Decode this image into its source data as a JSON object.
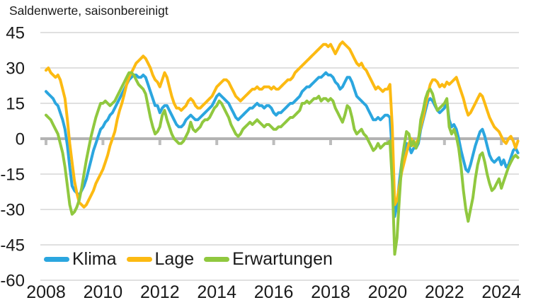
{
  "title": "Saldenwerte, saisonbereinigt",
  "legend": {
    "items": [
      {
        "label": "Klima",
        "color": "#2BA6DF"
      },
      {
        "label": "Lage",
        "color": "#FCBA12"
      },
      {
        "label": "Erwartungen",
        "color": "#90C83F"
      }
    ]
  },
  "axis_colors": {
    "gridline": "#cdcdcd",
    "zero_line": "#b3b3b3",
    "tick": "#bdbdbd",
    "text": "#1a1a1a"
  },
  "chart_data": {
    "type": "line",
    "title": "Saldenwerte, saisonbereinigt",
    "x_interval": "monthly",
    "x_start": "2008-01",
    "x_end": "2024-08",
    "xticks": [
      2008,
      2010,
      2012,
      2014,
      2016,
      2018,
      2020,
      2022,
      2024
    ],
    "yticks": [
      45,
      30,
      15,
      0,
      -15,
      -30,
      -45,
      -60
    ],
    "ylim": [
      -60,
      45
    ],
    "grid": "horizontal",
    "legend_position": "bottom-left-inside",
    "series": [
      {
        "name": "Klima",
        "color": "#2BA6DF",
        "values": [
          20,
          19,
          18,
          17,
          15,
          14,
          11,
          8,
          4,
          -3,
          -12,
          -20,
          -22,
          -23,
          -24,
          -22,
          -20,
          -17,
          -13,
          -9,
          -5,
          -2,
          1,
          4,
          5,
          7,
          8,
          10,
          11,
          13,
          15,
          17,
          19,
          21,
          23,
          25,
          26,
          27,
          27,
          26,
          26,
          27,
          26,
          23,
          20,
          17,
          14,
          14,
          11,
          13,
          14,
          14,
          12,
          10,
          8,
          6,
          5,
          5,
          6,
          8,
          9,
          10,
          9,
          8,
          8,
          9,
          10,
          11,
          12,
          13,
          14,
          16,
          18,
          19,
          18,
          17,
          16,
          15,
          13,
          11,
          9,
          8,
          9,
          10,
          11,
          12,
          13,
          13,
          14,
          15,
          14,
          14,
          13,
          14,
          14,
          13,
          11,
          10,
          11,
          11,
          12,
          13,
          14,
          15,
          15,
          16,
          17,
          18,
          20,
          21,
          22,
          22,
          23,
          24,
          25,
          26,
          26,
          27,
          28,
          27,
          27,
          26,
          24,
          23,
          21,
          22,
          24,
          26,
          26,
          24,
          21,
          18,
          17,
          16,
          15,
          14,
          12,
          10,
          8,
          8,
          9,
          8,
          9,
          10,
          10,
          9,
          -6,
          -33,
          -28,
          -18,
          -10,
          -5,
          -2,
          -3,
          -6,
          -4,
          -4,
          -2,
          4,
          8,
          12,
          16,
          17,
          16,
          14,
          12,
          11,
          12,
          13,
          16,
          8,
          5,
          6,
          4,
          0,
          -5,
          -9,
          -13,
          -14,
          -11,
          -7,
          -3,
          0,
          3,
          4,
          1,
          -3,
          -7,
          -9,
          -10,
          -9,
          -8,
          -11,
          -9,
          -12,
          -11,
          -8,
          -5,
          -4,
          -6
        ]
      },
      {
        "name": "Lage",
        "color": "#FCBA12",
        "values": [
          29,
          30,
          28,
          27,
          26,
          27,
          25,
          21,
          17,
          8,
          -2,
          -10,
          -18,
          -23,
          -27,
          -28,
          -29,
          -28,
          -26,
          -24,
          -22,
          -19,
          -17,
          -15,
          -13,
          -10,
          -7,
          -3,
          0,
          3,
          8,
          12,
          15,
          19,
          23,
          26,
          28,
          30,
          32,
          33,
          34,
          35,
          34,
          32,
          30,
          27,
          25,
          24,
          22,
          25,
          28,
          26,
          22,
          18,
          15,
          13,
          13,
          12,
          13,
          14,
          16,
          17,
          16,
          14,
          13,
          13,
          14,
          15,
          16,
          17,
          18,
          20,
          22,
          23,
          24,
          25,
          25,
          24,
          22,
          20,
          18,
          17,
          16,
          17,
          18,
          19,
          20,
          21,
          21,
          22,
          21,
          21,
          22,
          22,
          22,
          21,
          22,
          21,
          21,
          22,
          23,
          24,
          25,
          25,
          26,
          28,
          29,
          30,
          31,
          32,
          33,
          34,
          35,
          36,
          37,
          38,
          39,
          40,
          40,
          39,
          40,
          38,
          36,
          38,
          40,
          41,
          40,
          39,
          38,
          36,
          34,
          32,
          31,
          32,
          30,
          29,
          27,
          25,
          23,
          21,
          22,
          21,
          20,
          21,
          21,
          23,
          5,
          -28,
          -26,
          -20,
          -14,
          -10,
          -6,
          -2,
          0,
          -3,
          -2,
          0,
          5,
          9,
          14,
          19,
          23,
          25,
          25,
          24,
          22,
          23,
          22,
          24,
          23,
          24,
          25,
          26,
          23,
          20,
          17,
          13,
          10,
          11,
          13,
          15,
          17,
          19,
          18,
          15,
          12,
          9,
          7,
          5,
          4,
          3,
          1,
          -1,
          -2,
          0,
          1,
          -1,
          -4,
          -1
        ]
      },
      {
        "name": "Erwartungen",
        "color": "#90C83F",
        "values": [
          10,
          9,
          8,
          6,
          4,
          2,
          -2,
          -6,
          -12,
          -20,
          -28,
          -32,
          -31,
          -29,
          -26,
          -21,
          -15,
          -9,
          -4,
          1,
          5,
          9,
          12,
          15,
          15,
          16,
          15,
          14,
          15,
          16,
          18,
          20,
          22,
          24,
          26,
          28,
          28,
          27,
          25,
          23,
          22,
          21,
          19,
          14,
          9,
          5,
          2,
          3,
          5,
          10,
          12,
          8,
          5,
          2,
          0,
          -1,
          -2,
          -2,
          -1,
          1,
          3,
          7,
          4,
          3,
          4,
          5,
          7,
          8,
          8,
          9,
          11,
          13,
          14,
          16,
          15,
          13,
          11,
          9,
          6,
          4,
          2,
          1,
          2,
          4,
          5,
          6,
          7,
          6,
          7,
          8,
          7,
          6,
          5,
          6,
          6,
          5,
          4,
          4,
          5,
          5,
          6,
          7,
          8,
          9,
          9,
          10,
          11,
          12,
          15,
          15,
          16,
          15,
          16,
          17,
          17,
          18,
          16,
          17,
          17,
          16,
          17,
          16,
          13,
          11,
          9,
          7,
          10,
          14,
          13,
          9,
          4,
          2,
          3,
          4,
          2,
          1,
          -1,
          -3,
          -5,
          -4,
          -2,
          -4,
          -3,
          -2,
          -2,
          -1,
          -18,
          -49,
          -42,
          -25,
          -10,
          -3,
          3,
          2,
          -3,
          -1,
          -4,
          -1,
          8,
          12,
          17,
          20,
          21,
          19,
          15,
          12,
          13,
          14,
          15,
          17,
          5,
          2,
          4,
          1,
          -4,
          -12,
          -22,
          -30,
          -35,
          -30,
          -25,
          -17,
          -11,
          -7,
          -6,
          -10,
          -15,
          -19,
          -22,
          -21,
          -19,
          -17,
          -21,
          -18,
          -15,
          -12,
          -10,
          -8,
          -7,
          -8
        ]
      }
    ]
  }
}
